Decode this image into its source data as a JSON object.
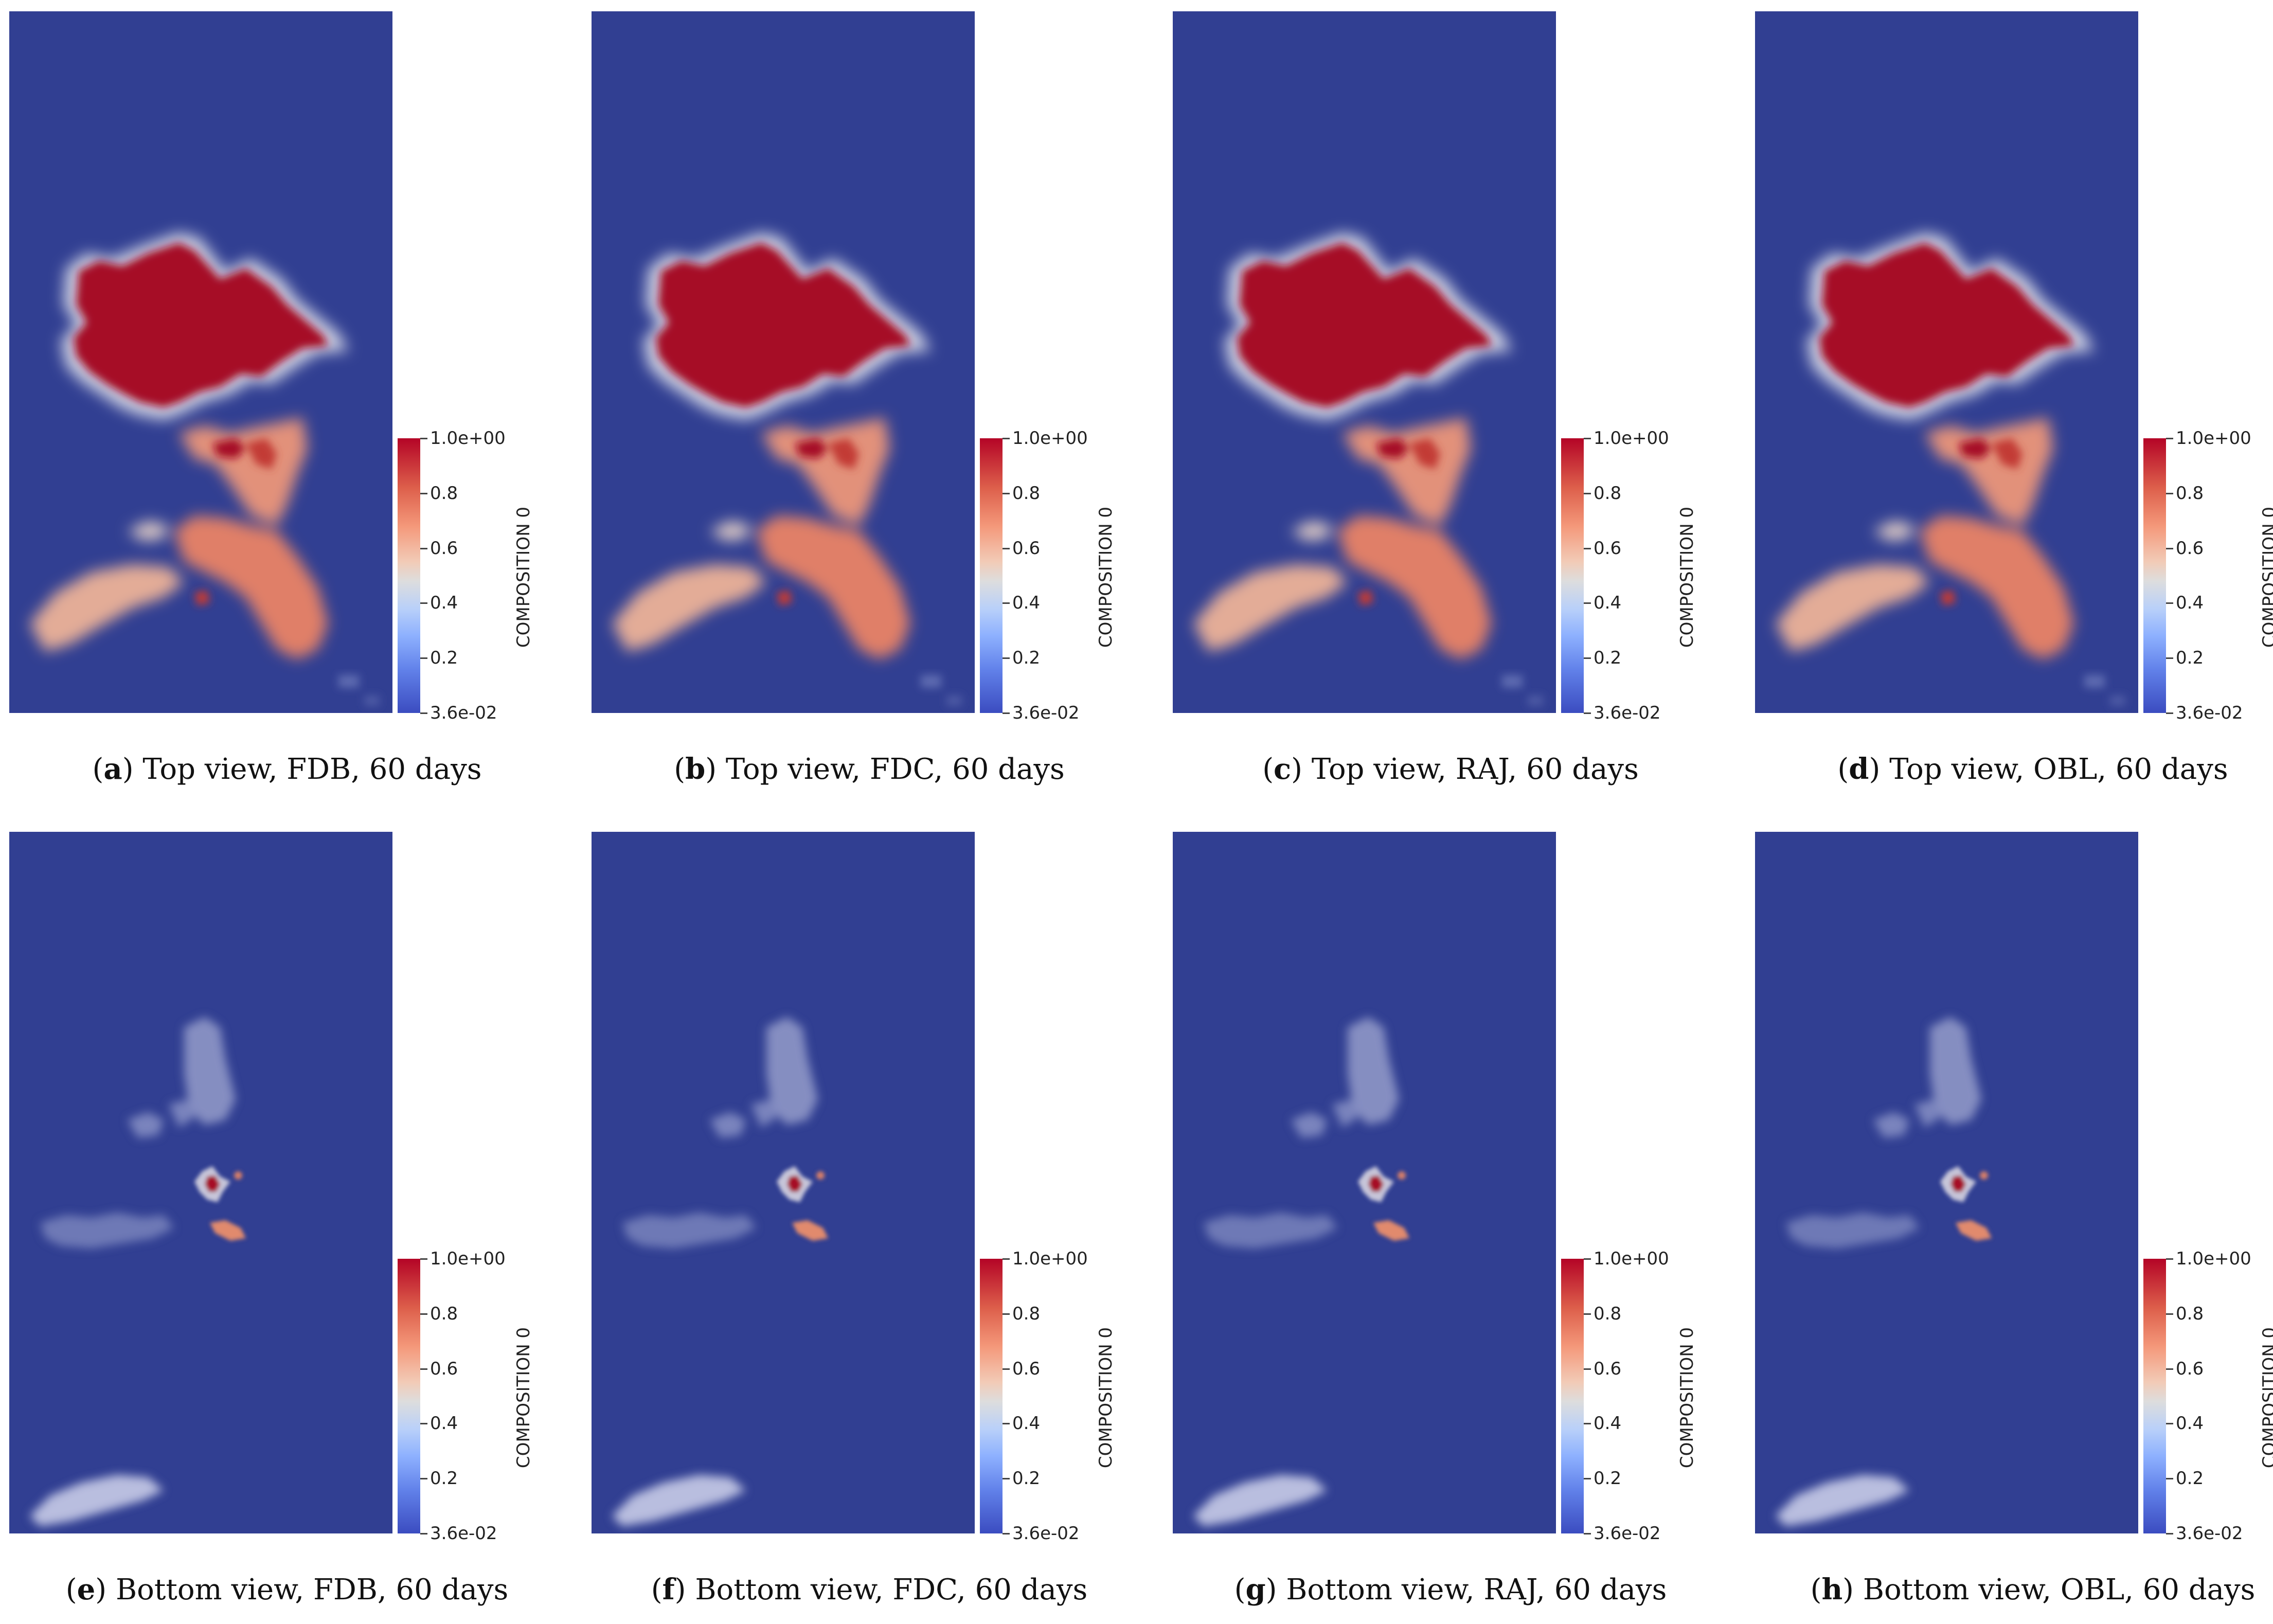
{
  "colorbar": {
    "max_label": "1.0e+00",
    "min_label": "3.6e-02",
    "ticks": [
      "0.8",
      "0.6",
      "0.4",
      "0.2"
    ],
    "title": "COMPOSITION 0"
  },
  "colors": {
    "background_field": "#313f92",
    "high_value": "#b40426",
    "low_value": "#3b4cc0"
  },
  "panels": [
    {
      "letter": "a",
      "view": "top",
      "caption": " Top view, FDB, 60 days"
    },
    {
      "letter": "b",
      "view": "top",
      "caption": " Top view, FDC, 60 days"
    },
    {
      "letter": "c",
      "view": "top",
      "caption": " Top view, RAJ, 60 days"
    },
    {
      "letter": "d",
      "view": "top",
      "caption": " Top view, OBL, 60 days"
    },
    {
      "letter": "e",
      "view": "bottom",
      "caption": " Bottom view, FDB, 60 days"
    },
    {
      "letter": "f",
      "view": "bottom",
      "caption": " Bottom view, FDC, 60 days"
    },
    {
      "letter": "g",
      "view": "bottom",
      "caption": " Bottom view, RAJ, 60 days"
    },
    {
      "letter": "h",
      "view": "bottom",
      "caption": " Bottom view, OBL, 60 days"
    }
  ]
}
